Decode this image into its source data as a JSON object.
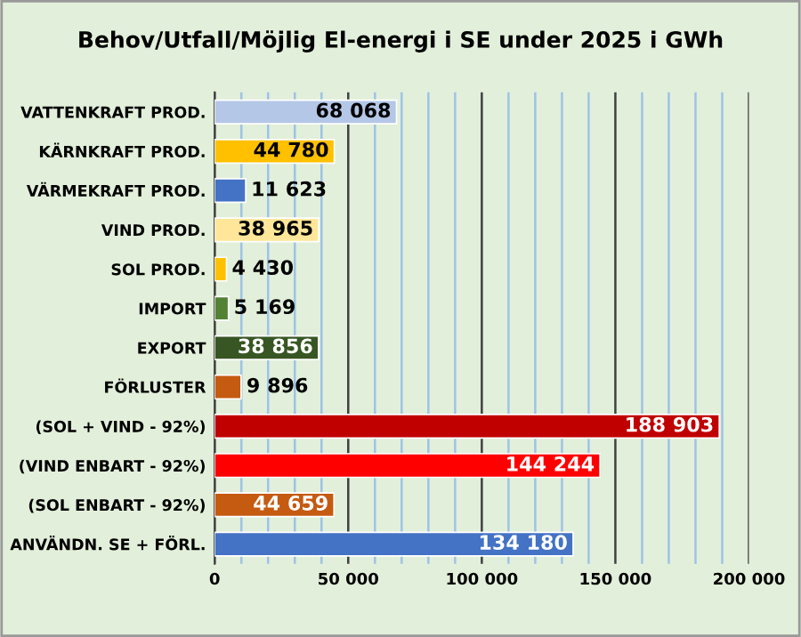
{
  "chart_data": {
    "type": "bar",
    "orientation": "horizontal",
    "title": "Behov/Utfall/Möjlig El-energi i SE under 2025 i GWh",
    "categories": [
      "VATTENKRAFT PROD.",
      "KÄRNKRAFT PROD.",
      "VÄRMEKRAFT PROD.",
      "VIND PROD.",
      "SOL PROD.",
      "IMPORT",
      "EXPORT",
      "FÖRLUSTER",
      "(SOL + VIND - 92%)",
      "(VIND ENBART - 92%)",
      "(SOL ENBART - 92%)",
      "ANVÄNDN. SE + FÖRL."
    ],
    "values": [
      68068,
      44780,
      11623,
      38965,
      4430,
      5169,
      38856,
      9896,
      188903,
      144244,
      44659,
      134180
    ],
    "value_labels": [
      "68 068",
      "44 780",
      "11 623",
      "38 965",
      "4 430",
      "5 169",
      "38 856",
      "9 896",
      "188 903",
      "144 244",
      "44 659",
      "134 180"
    ],
    "colors": [
      "#b4c7e7",
      "#ffc000",
      "#4472c4",
      "#ffe699",
      "#ffc000",
      "#548235",
      "#375623",
      "#c55a11",
      "#c00000",
      "#ff0000",
      "#c55a11",
      "#4472c4"
    ],
    "xlim": [
      0,
      200000
    ],
    "xticks": [
      {
        "value": 0,
        "label": "0"
      },
      {
        "value": 10000,
        "label": null
      },
      {
        "value": 20000,
        "label": null
      },
      {
        "value": 30000,
        "label": null
      },
      {
        "value": 40000,
        "label": null
      },
      {
        "value": 50000,
        "label": "50 000"
      },
      {
        "value": 60000,
        "label": null
      },
      {
        "value": 70000,
        "label": null
      },
      {
        "value": 80000,
        "label": null
      },
      {
        "value": 90000,
        "label": null
      },
      {
        "value": 100000,
        "label": "100 000"
      },
      {
        "value": 110000,
        "label": null
      },
      {
        "value": 120000,
        "label": null
      },
      {
        "value": 130000,
        "label": null
      },
      {
        "value": 140000,
        "label": null
      },
      {
        "value": 150000,
        "label": "150 000"
      },
      {
        "value": 160000,
        "label": null
      },
      {
        "value": 170000,
        "label": null
      },
      {
        "value": 180000,
        "label": null
      },
      {
        "value": 190000,
        "label": null
      },
      {
        "value": 200000,
        "label": "200 000"
      }
    ],
    "grid": "x",
    "legend": false
  }
}
